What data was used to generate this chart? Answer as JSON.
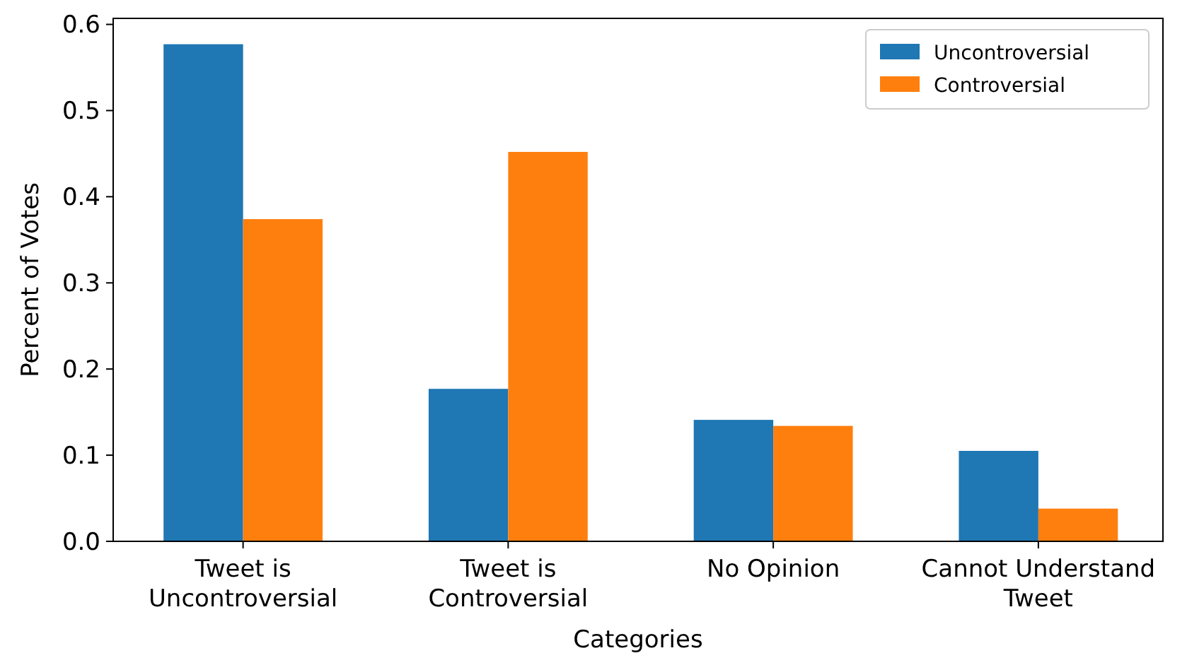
{
  "chart_data": {
    "type": "bar",
    "xlabel": "Categories",
    "ylabel": "Percent of Votes",
    "categories": [
      "Tweet is\nUncontroversial",
      "Tweet is\nControversial",
      "No Opinion",
      "Cannot Understand\nTweet"
    ],
    "series": [
      {
        "name": "Uncontroversial",
        "color": "#1f77b4",
        "values": [
          0.577,
          0.177,
          0.141,
          0.105
        ]
      },
      {
        "name": "Controversial",
        "color": "#ff7f0e",
        "values": [
          0.374,
          0.452,
          0.134,
          0.038
        ]
      }
    ],
    "ylim": [
      0,
      0.607
    ],
    "yticks": [
      {
        "value": 0,
        "label": "0.0"
      },
      0.1,
      0.2,
      0.3,
      0.4,
      0.5,
      0.6
    ],
    "legend": "top right",
    "grid": false
  }
}
